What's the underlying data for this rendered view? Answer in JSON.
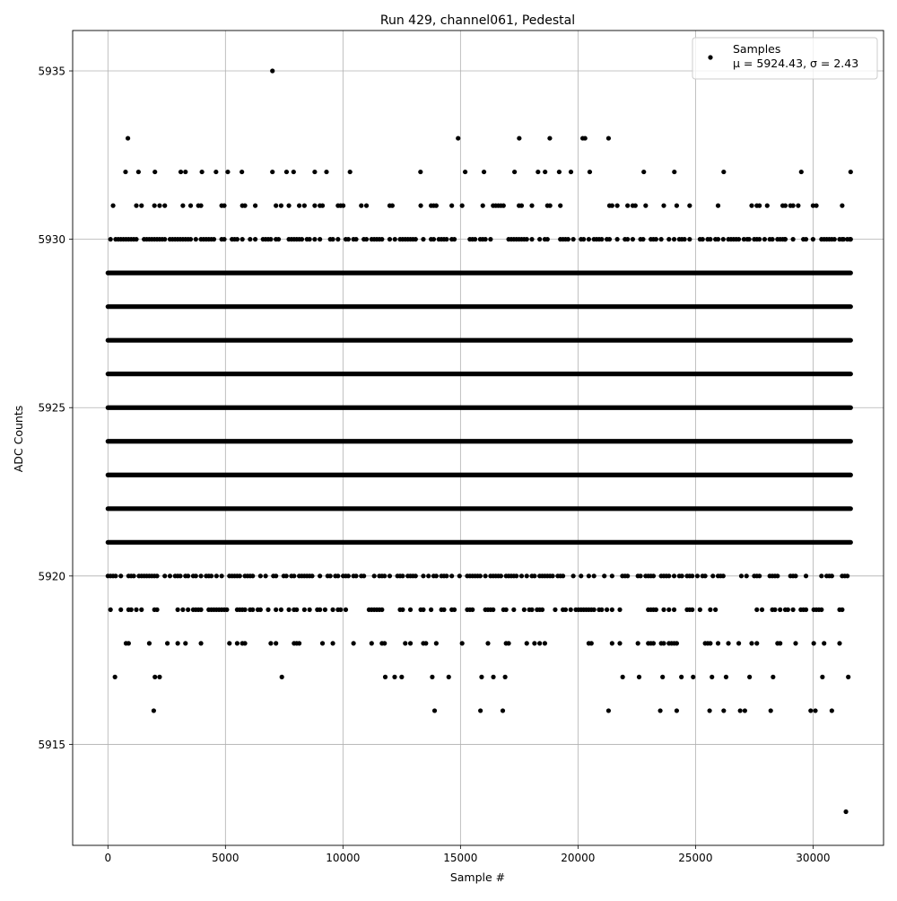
{
  "chart_data": {
    "type": "scatter",
    "title": "Run 429, channel061, Pedestal",
    "xlabel": "Sample #",
    "ylabel": "ADC Counts",
    "xlim": [
      -1500,
      33000
    ],
    "ylim": [
      5912.0,
      5936.2
    ],
    "x_ticks": [
      0,
      5000,
      10000,
      15000,
      20000,
      25000,
      30000
    ],
    "x_tick_labels": [
      "0",
      "5000",
      "10000",
      "15000",
      "20000",
      "25000",
      "30000"
    ],
    "y_ticks": [
      5915,
      5920,
      5925,
      5930,
      5935
    ],
    "y_tick_labels": [
      "5915",
      "5920",
      "5925",
      "5930",
      "5935"
    ],
    "grid": true,
    "legend_position": "top-right",
    "marker_color": "#000000",
    "series": [
      {
        "name": "Samples",
        "stats_label": "μ = 5924.43, σ = 2.43",
        "mean": 5924.43,
        "sigma": 2.43,
        "n_samples": 31600,
        "levels": [
          5913,
          5916,
          5917,
          5918,
          5919,
          5920,
          5921,
          5922,
          5923,
          5924,
          5925,
          5926,
          5927,
          5928,
          5929,
          5930,
          5931,
          5932,
          5933,
          5935
        ],
        "dense_levels": [
          5921,
          5922,
          5923,
          5924,
          5925,
          5926,
          5927,
          5928,
          5929
        ],
        "points": [
          {
            "x": 7000,
            "y": 5935
          },
          {
            "x": 31400,
            "y": 5913
          },
          {
            "x": 850,
            "y": 5933
          },
          {
            "x": 14900,
            "y": 5933
          },
          {
            "x": 17500,
            "y": 5933
          },
          {
            "x": 18800,
            "y": 5933
          },
          {
            "x": 20200,
            "y": 5933
          },
          {
            "x": 20300,
            "y": 5933
          },
          {
            "x": 21300,
            "y": 5933
          },
          {
            "x": 750,
            "y": 5932
          },
          {
            "x": 1300,
            "y": 5932
          },
          {
            "x": 2000,
            "y": 5932
          },
          {
            "x": 3100,
            "y": 5932
          },
          {
            "x": 3300,
            "y": 5932
          },
          {
            "x": 4000,
            "y": 5932
          },
          {
            "x": 4600,
            "y": 5932
          },
          {
            "x": 5100,
            "y": 5932
          },
          {
            "x": 5700,
            "y": 5932
          },
          {
            "x": 7000,
            "y": 5932
          },
          {
            "x": 7600,
            "y": 5932
          },
          {
            "x": 7900,
            "y": 5932
          },
          {
            "x": 8800,
            "y": 5932
          },
          {
            "x": 9300,
            "y": 5932
          },
          {
            "x": 10300,
            "y": 5932
          },
          {
            "x": 13300,
            "y": 5932
          },
          {
            "x": 15200,
            "y": 5932
          },
          {
            "x": 16000,
            "y": 5932
          },
          {
            "x": 17300,
            "y": 5932
          },
          {
            "x": 18300,
            "y": 5932
          },
          {
            "x": 18600,
            "y": 5932
          },
          {
            "x": 19200,
            "y": 5932
          },
          {
            "x": 19700,
            "y": 5932
          },
          {
            "x": 20500,
            "y": 5932
          },
          {
            "x": 22800,
            "y": 5932
          },
          {
            "x": 24100,
            "y": 5932
          },
          {
            "x": 26200,
            "y": 5932
          },
          {
            "x": 29500,
            "y": 5932
          },
          {
            "x": 31600,
            "y": 5932
          },
          {
            "x": 30000,
            "y": 5931
          },
          {
            "x": 27200,
            "y": 5930
          },
          {
            "x": 28800,
            "y": 5930
          },
          {
            "x": 30000,
            "y": 5930
          },
          {
            "x": 31300,
            "y": 5930
          },
          {
            "x": 31600,
            "y": 5930
          },
          {
            "x": 300,
            "y": 5917
          },
          {
            "x": 2000,
            "y": 5917
          },
          {
            "x": 2200,
            "y": 5917
          },
          {
            "x": 7400,
            "y": 5917
          },
          {
            "x": 11800,
            "y": 5917
          },
          {
            "x": 12200,
            "y": 5917
          },
          {
            "x": 12500,
            "y": 5917
          },
          {
            "x": 13800,
            "y": 5917
          },
          {
            "x": 14500,
            "y": 5917
          },
          {
            "x": 15900,
            "y": 5917
          },
          {
            "x": 16400,
            "y": 5917
          },
          {
            "x": 16900,
            "y": 5917
          },
          {
            "x": 21900,
            "y": 5917
          },
          {
            "x": 22600,
            "y": 5917
          },
          {
            "x": 23600,
            "y": 5917
          },
          {
            "x": 24400,
            "y": 5917
          },
          {
            "x": 24900,
            "y": 5917
          },
          {
            "x": 25700,
            "y": 5917
          },
          {
            "x": 26300,
            "y": 5917
          },
          {
            "x": 27300,
            "y": 5917
          },
          {
            "x": 28300,
            "y": 5917
          },
          {
            "x": 30400,
            "y": 5917
          },
          {
            "x": 31500,
            "y": 5917
          },
          {
            "x": 1950,
            "y": 5916
          },
          {
            "x": 13900,
            "y": 5916
          },
          {
            "x": 15850,
            "y": 5916
          },
          {
            "x": 16800,
            "y": 5916
          },
          {
            "x": 21300,
            "y": 5916
          },
          {
            "x": 23500,
            "y": 5916
          },
          {
            "x": 24200,
            "y": 5916
          },
          {
            "x": 25600,
            "y": 5916
          },
          {
            "x": 26200,
            "y": 5916
          },
          {
            "x": 26900,
            "y": 5916
          },
          {
            "x": 27100,
            "y": 5916
          },
          {
            "x": 28200,
            "y": 5916
          },
          {
            "x": 29900,
            "y": 5916
          },
          {
            "x": 30100,
            "y": 5916
          },
          {
            "x": 30800,
            "y": 5916
          }
        ]
      }
    ]
  }
}
